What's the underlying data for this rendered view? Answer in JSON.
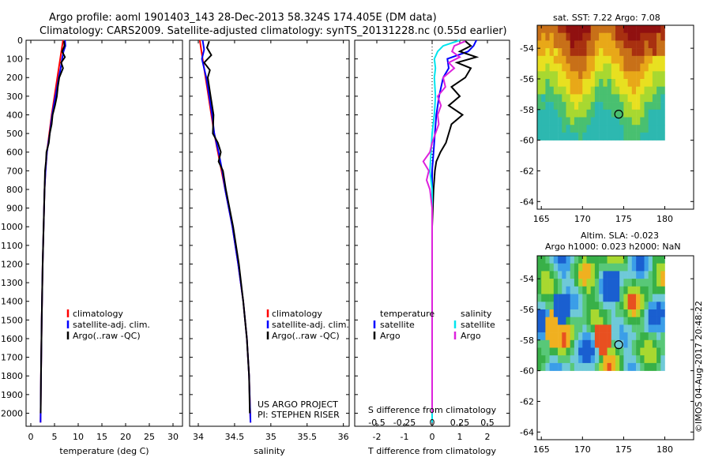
{
  "header": {
    "line1": "Argo profile: aoml 1901403_143 28-Dec-2013 58.324S 174.405E (DM data)",
    "line2": "Climatology: CARS2009. Satellite-adjusted climatology: synTS_20131228.nc (0.55d earlier)"
  },
  "side_label": "©IMOS 04-Aug-2017 20:48:22",
  "panel_titles": {
    "sst": "sat. SST: 7.22  Argo: 7.08",
    "sla1": "Altim. SLA: -0.023",
    "sla2": "Argo h1000: 0.023 h2000: NaN"
  },
  "colors": {
    "climatology": "#ff0000",
    "satellite": "#0000ff",
    "argo": "#000000",
    "s_satellite": "#00e5ee",
    "s_argo": "#dd22dd"
  },
  "chart_data": [
    {
      "type": "line",
      "name": "temperature",
      "xlabel": "temperature (deg C)",
      "ylabel": "",
      "xlim": [
        -1,
        32
      ],
      "ylim": [
        2070,
        0
      ],
      "xticks": [
        "0",
        "5",
        "10",
        "15",
        "20",
        "25",
        "30"
      ],
      "yticks": [
        "0",
        "100",
        "200",
        "300",
        "400",
        "500",
        "600",
        "700",
        "800",
        "900",
        "1000",
        "1100",
        "1200",
        "1300",
        "1400",
        "1500",
        "1600",
        "1700",
        "1800",
        "1900",
        "2000"
      ],
      "legend": [
        "climatology",
        "satellite-adj. clim.",
        "Argo(..raw -QC)"
      ],
      "series": [
        {
          "name": "climatology",
          "depth": [
            0,
            50,
            100,
            200,
            300,
            400,
            500,
            600,
            700,
            800,
            1000,
            1200,
            1500,
            1800,
            2050
          ],
          "values": [
            6.8,
            6.5,
            6.2,
            5.6,
            5.0,
            4.4,
            3.9,
            3.4,
            3.1,
            2.9,
            2.7,
            2.5,
            2.3,
            2.15,
            2.05
          ]
        },
        {
          "name": "satellite-adj. clim.",
          "depth": [
            0,
            30,
            60,
            100,
            150,
            200,
            300,
            400,
            500,
            600,
            700,
            800,
            1000,
            1200,
            1500,
            1800,
            2050
          ],
          "values": [
            7.2,
            7.3,
            6.9,
            6.6,
            6.3,
            5.9,
            5.2,
            4.5,
            4.0,
            3.4,
            3.1,
            2.9,
            2.7,
            2.5,
            2.3,
            2.15,
            2.05
          ]
        },
        {
          "name": "Argo(..raw -QC)",
          "depth": [
            5,
            30,
            60,
            90,
            120,
            150,
            200,
            250,
            300,
            350,
            400,
            450,
            500,
            550,
            600,
            650,
            700,
            800,
            1000,
            1200,
            1500,
            1800,
            2000
          ],
          "values": [
            7.0,
            7.1,
            6.6,
            7.2,
            6.4,
            6.8,
            6.0,
            5.7,
            5.5,
            5.1,
            4.6,
            4.4,
            4.0,
            3.8,
            3.3,
            3.2,
            3.0,
            2.9,
            2.7,
            2.5,
            2.3,
            2.15,
            2.08
          ]
        }
      ]
    },
    {
      "type": "line",
      "name": "salinity",
      "xlabel": "salinity",
      "ylabel": "",
      "xlim": [
        33.88,
        36.08
      ],
      "ylim": [
        2070,
        0
      ],
      "xticks": [
        "34",
        "34.5",
        "35",
        "35.5",
        "36"
      ],
      "legend": [
        "climatology",
        "satellite-adj. clim.",
        "Argo(..raw -QC)"
      ],
      "annotation": [
        "US ARGO PROJECT",
        "PI: STEPHEN RISER"
      ],
      "series": [
        {
          "name": "climatology",
          "depth": [
            0,
            100,
            200,
            300,
            400,
            500,
            600,
            700,
            800,
            900,
            1000,
            1200,
            1400,
            1600,
            1800,
            2050
          ],
          "values": [
            34.02,
            34.06,
            34.1,
            34.14,
            34.18,
            34.22,
            34.27,
            34.32,
            34.37,
            34.42,
            34.47,
            34.55,
            34.62,
            34.67,
            34.7,
            34.72
          ]
        },
        {
          "name": "satellite-adj. clim.",
          "depth": [
            0,
            50,
            100,
            200,
            300,
            400,
            500,
            600,
            700,
            800,
            900,
            1000,
            1200,
            1400,
            1600,
            1800,
            2050
          ],
          "values": [
            34.06,
            34.08,
            34.05,
            34.11,
            34.15,
            34.19,
            34.22,
            34.28,
            34.33,
            34.37,
            34.42,
            34.47,
            34.55,
            34.62,
            34.67,
            34.7,
            34.72
          ]
        },
        {
          "name": "Argo(..raw -QC)",
          "depth": [
            5,
            40,
            80,
            120,
            160,
            200,
            300,
            400,
            500,
            550,
            600,
            650,
            700,
            800,
            900,
            1000,
            1200,
            1400,
            1600,
            1800,
            2000
          ],
          "values": [
            34.15,
            34.12,
            34.18,
            34.08,
            34.16,
            34.13,
            34.17,
            34.21,
            34.2,
            34.27,
            34.31,
            34.28,
            34.34,
            34.38,
            34.43,
            34.48,
            34.56,
            34.62,
            34.67,
            34.7,
            34.71
          ]
        }
      ]
    },
    {
      "type": "line",
      "name": "differences",
      "xlabel": "T difference from climatology",
      "xlabel_top": "S difference from climatology",
      "xlim": [
        -2.8,
        2.8
      ],
      "ylim": [
        2070,
        0
      ],
      "xticks": [
        "-2",
        "-1",
        "0",
        "1",
        "2"
      ],
      "xticks_s": [
        "-0.5",
        "-0.25",
        "0",
        "0.25",
        "0.5"
      ],
      "legend_headers": [
        "temperature",
        "salinity"
      ],
      "legend": [
        "satellite",
        "Argo",
        "satellite",
        "Argo"
      ],
      "series": [
        {
          "name": "temperature satellite",
          "depth": [
            0,
            30,
            60,
            100,
            150,
            200,
            300,
            400,
            500,
            600,
            700,
            800,
            1000,
            1200,
            1500,
            1800,
            2050
          ],
          "values": [
            1.6,
            1.5,
            1.3,
            0.55,
            0.6,
            0.4,
            0.25,
            0.15,
            0.1,
            0.05,
            0.0,
            0.0,
            0.0,
            0.0,
            0.0,
            0.0,
            0.0
          ]
        },
        {
          "name": "temperature Argo",
          "depth": [
            5,
            30,
            60,
            90,
            120,
            150,
            200,
            250,
            300,
            350,
            400,
            450,
            500,
            550,
            600,
            650,
            700,
            800,
            1000,
            1200,
            1500,
            1800,
            2000
          ],
          "values": [
            1.2,
            1.4,
            1.0,
            1.6,
            0.9,
            1.4,
            1.2,
            0.7,
            1.0,
            0.6,
            1.1,
            0.7,
            0.6,
            0.5,
            0.3,
            0.15,
            0.1,
            0.05,
            0.0,
            0.0,
            0.0,
            0.0,
            0.0
          ]
        },
        {
          "name": "salinity satellite",
          "depth": [
            0,
            30,
            60,
            100,
            150,
            200,
            300,
            400,
            500,
            600,
            700,
            800,
            1000,
            1500,
            2050
          ],
          "values": [
            0.25,
            0.1,
            0.05,
            0.02,
            0.03,
            0.02,
            0.03,
            0.02,
            0.0,
            -0.01,
            -0.02,
            0.0,
            0.0,
            0.0,
            0.0
          ]
        },
        {
          "name": "salinity Argo",
          "depth": [
            5,
            30,
            60,
            90,
            120,
            150,
            200,
            250,
            300,
            350,
            400,
            450,
            500,
            550,
            600,
            650,
            700,
            750,
            800,
            900,
            1000,
            1200,
            1500,
            2000
          ],
          "values": [
            0.3,
            0.2,
            0.18,
            0.25,
            0.15,
            0.2,
            0.1,
            0.12,
            0.05,
            0.08,
            0.05,
            0.06,
            0.03,
            0.0,
            -0.02,
            -0.08,
            -0.03,
            -0.05,
            -0.02,
            0.0,
            0.0,
            0.0,
            0.0,
            0.0
          ]
        }
      ]
    },
    {
      "type": "heatmap",
      "name": "sst map",
      "xlim": [
        164.5,
        183.5
      ],
      "ylim": [
        -64.5,
        -52.5
      ],
      "xticks": [
        "165",
        "170",
        "175",
        "180"
      ],
      "yticks": [
        "-54",
        "-56",
        "-58",
        "-60",
        "-62",
        "-64"
      ],
      "marker": {
        "lon": 174.4,
        "lat": -58.3
      }
    },
    {
      "type": "heatmap",
      "name": "sla map",
      "xlim": [
        164.5,
        183.5
      ],
      "ylim": [
        -64.5,
        -52.5
      ],
      "xticks": [
        "165",
        "170",
        "175",
        "180"
      ],
      "yticks": [
        "-54",
        "-56",
        "-58",
        "-60",
        "-62",
        "-64"
      ],
      "marker": {
        "lon": 174.4,
        "lat": -58.3
      }
    }
  ]
}
